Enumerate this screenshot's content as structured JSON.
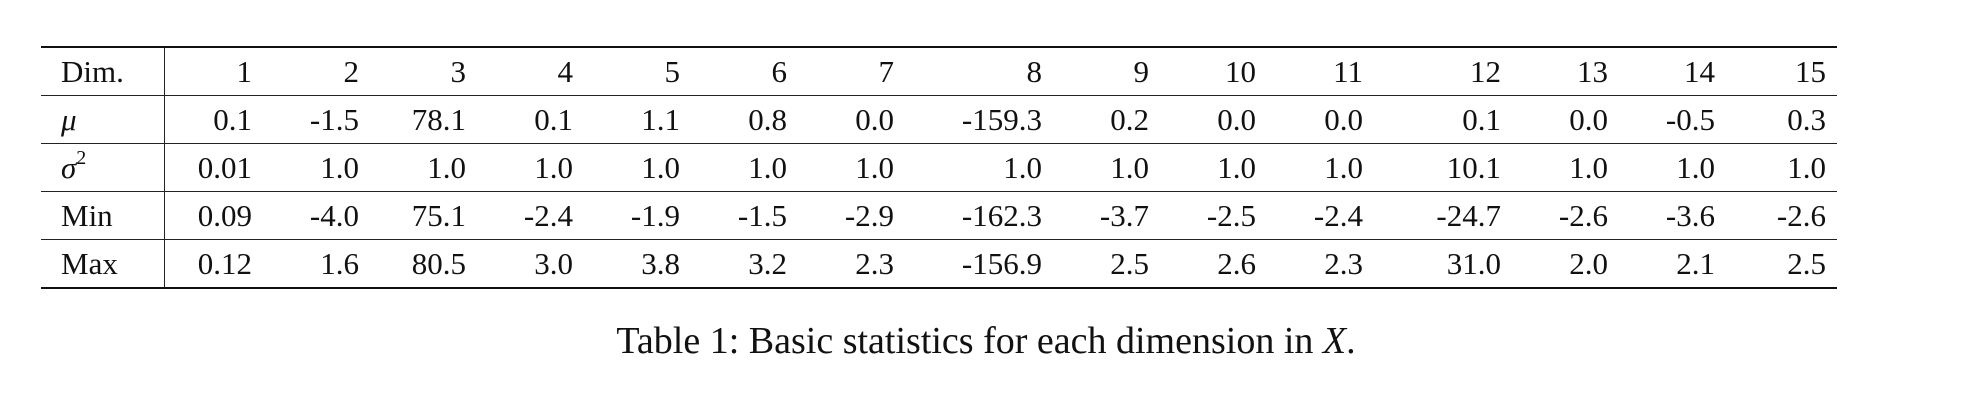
{
  "table": {
    "labels": {
      "dim": "Dim.",
      "mu_symbol": "μ",
      "var_symbol": "σ",
      "var_power": "2",
      "min": "Min",
      "max": "Max"
    },
    "dims": [
      "1",
      "2",
      "3",
      "4",
      "5",
      "6",
      "7",
      "8",
      "9",
      "10",
      "11",
      "12",
      "13",
      "14",
      "15"
    ],
    "mu": [
      "0.1",
      "-1.5",
      "78.1",
      "0.1",
      "1.1",
      "0.8",
      "0.0",
      "-159.3",
      "0.2",
      "0.0",
      "0.0",
      "0.1",
      "0.0",
      "-0.5",
      "0.3"
    ],
    "var": [
      "0.01",
      "1.0",
      "1.0",
      "1.0",
      "1.0",
      "1.0",
      "1.0",
      "1.0",
      "1.0",
      "1.0",
      "1.0",
      "10.1",
      "1.0",
      "1.0",
      "1.0"
    ],
    "min": [
      "0.09",
      "-4.0",
      "75.1",
      "-2.4",
      "-1.9",
      "-1.5",
      "-2.9",
      "-162.3",
      "-3.7",
      "-2.5",
      "-2.4",
      "-24.7",
      "-2.6",
      "-3.6",
      "-2.6"
    ],
    "max": [
      "0.12",
      "1.6",
      "80.5",
      "3.0",
      "3.8",
      "3.2",
      "2.3",
      "-156.9",
      "2.5",
      "2.6",
      "2.3",
      "31.0",
      "2.0",
      "2.1",
      "2.5"
    ]
  },
  "caption": {
    "prefix": "Table 1: Basic statistics for each dimension in ",
    "var": "X",
    "suffix": "."
  }
}
